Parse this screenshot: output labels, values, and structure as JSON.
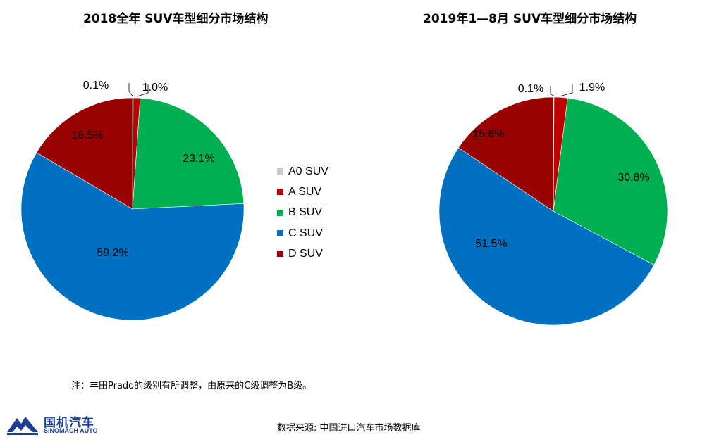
{
  "chart_data": [
    {
      "type": "pie",
      "title": "2018全年 SUV车型细分市场结构",
      "series": [
        {
          "name": "A0 SUV",
          "value": 0.1,
          "label": "0.1%",
          "color": "#c8c8c8"
        },
        {
          "name": "A SUV",
          "value": 1.0,
          "label": "1.0%",
          "color": "#c00000"
        },
        {
          "name": "B SUV",
          "value": 23.1,
          "label": "23.1%",
          "color": "#00b050"
        },
        {
          "name": "C SUV",
          "value": 59.2,
          "label": "59.2%",
          "color": "#0070c0"
        },
        {
          "name": "D SUV",
          "value": 16.5,
          "label": "16.5%",
          "color": "#990000"
        }
      ]
    },
    {
      "type": "pie",
      "title": "2019年1—8月 SUV车型细分市场结构",
      "series": [
        {
          "name": "A0 SUV",
          "value": 0.1,
          "label": "0.1%",
          "color": "#c8c8c8"
        },
        {
          "name": "A SUV",
          "value": 1.9,
          "label": "1.9%",
          "color": "#c00000"
        },
        {
          "name": "B SUV",
          "value": 30.8,
          "label": "30.8%",
          "color": "#00b050"
        },
        {
          "name": "C SUV",
          "value": 51.5,
          "label": "51.5%",
          "color": "#0070c0"
        },
        {
          "name": "D SUV",
          "value": 15.6,
          "label": "15.6%",
          "color": "#990000"
        }
      ]
    }
  ],
  "legend": {
    "placement": "center",
    "items": [
      {
        "label": "A0 SUV",
        "color": "#c8c8c8"
      },
      {
        "label": "A SUV",
        "color": "#c00000"
      },
      {
        "label": "B SUV",
        "color": "#00b050"
      },
      {
        "label": "C SUV",
        "color": "#0070c0"
      },
      {
        "label": "D SUV",
        "color": "#990000"
      }
    ]
  },
  "note": "注：丰田Prado的级别有所调整，由原来的C级调整为B级。",
  "source": "数据来源: 中国进口汽车市场数据库",
  "logo": {
    "name": "国机汽车",
    "subname": "SINOMACH AUTO",
    "brand_color": "#1c3f94"
  }
}
